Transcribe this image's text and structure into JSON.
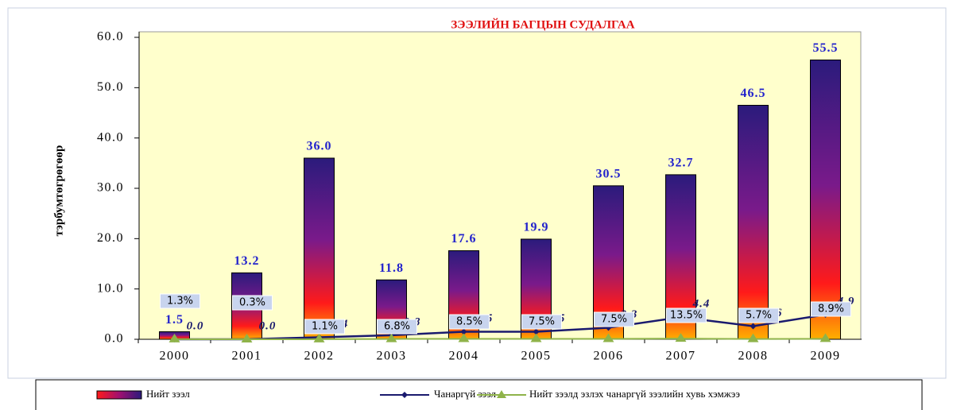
{
  "chart_data": {
    "type": "bar",
    "title": "ЗЭЭЛИЙН БАГЦЫН СУДАЛГАА",
    "y_label": "тэрбумтөгрөгөөр",
    "categories": [
      "2000",
      "2001",
      "2002",
      "2003",
      "2004",
      "2005",
      "2006",
      "2007",
      "2008",
      "2009"
    ],
    "series": [
      {
        "name": "Нийт зээл",
        "type": "bar",
        "color": "#2b1b7c",
        "values": [
          1.5,
          13.2,
          36.0,
          11.8,
          17.6,
          19.9,
          30.5,
          32.7,
          46.5,
          55.5
        ],
        "value_labels": [
          "1.5",
          "13.2",
          "36.0",
          "11.8",
          "17.6",
          "19.9",
          "30.5",
          "32.7",
          "46.5",
          "55.5"
        ]
      },
      {
        "name": "Чанаргүй зээл",
        "type": "line",
        "color": "#1a1a6e",
        "values": [
          0.0,
          0.0,
          0.4,
          0.8,
          1.5,
          1.5,
          2.3,
          4.4,
          2.6,
          4.9
        ],
        "value_labels": [
          "0.0",
          "0.0",
          "0.4",
          "0.8",
          "1.5",
          "1.5",
          "2.3",
          "4.4",
          "2.6",
          "4.9"
        ]
      },
      {
        "name": "Нийт зээлд эзлэх чанаргүй зээлийн хувь хэмжээ",
        "type": "line",
        "color": "#8fb34a",
        "values": [
          0.013,
          0.003,
          0.011,
          0.068,
          0.085,
          0.075,
          0.075,
          0.135,
          0.057,
          0.089
        ],
        "value_labels": [
          "1.3%",
          "0.3%",
          "1.1%",
          "6.8%",
          "8.5%",
          "7.5%",
          "7.5%",
          "13.5%",
          "5.7%",
          "8.9%"
        ]
      }
    ],
    "ylim": [
      0,
      60
    ],
    "yticks": [
      {
        "value": 0,
        "label": "0.0"
      },
      {
        "value": 10,
        "label": "10.0"
      },
      {
        "value": 20,
        "label": "20.0"
      },
      {
        "value": 30,
        "label": "30.0"
      },
      {
        "value": 40,
        "label": "40.0"
      },
      {
        "value": 50,
        "label": "50.0"
      },
      {
        "value": 60,
        "label": "60.0"
      }
    ],
    "legend": "bottom"
  }
}
